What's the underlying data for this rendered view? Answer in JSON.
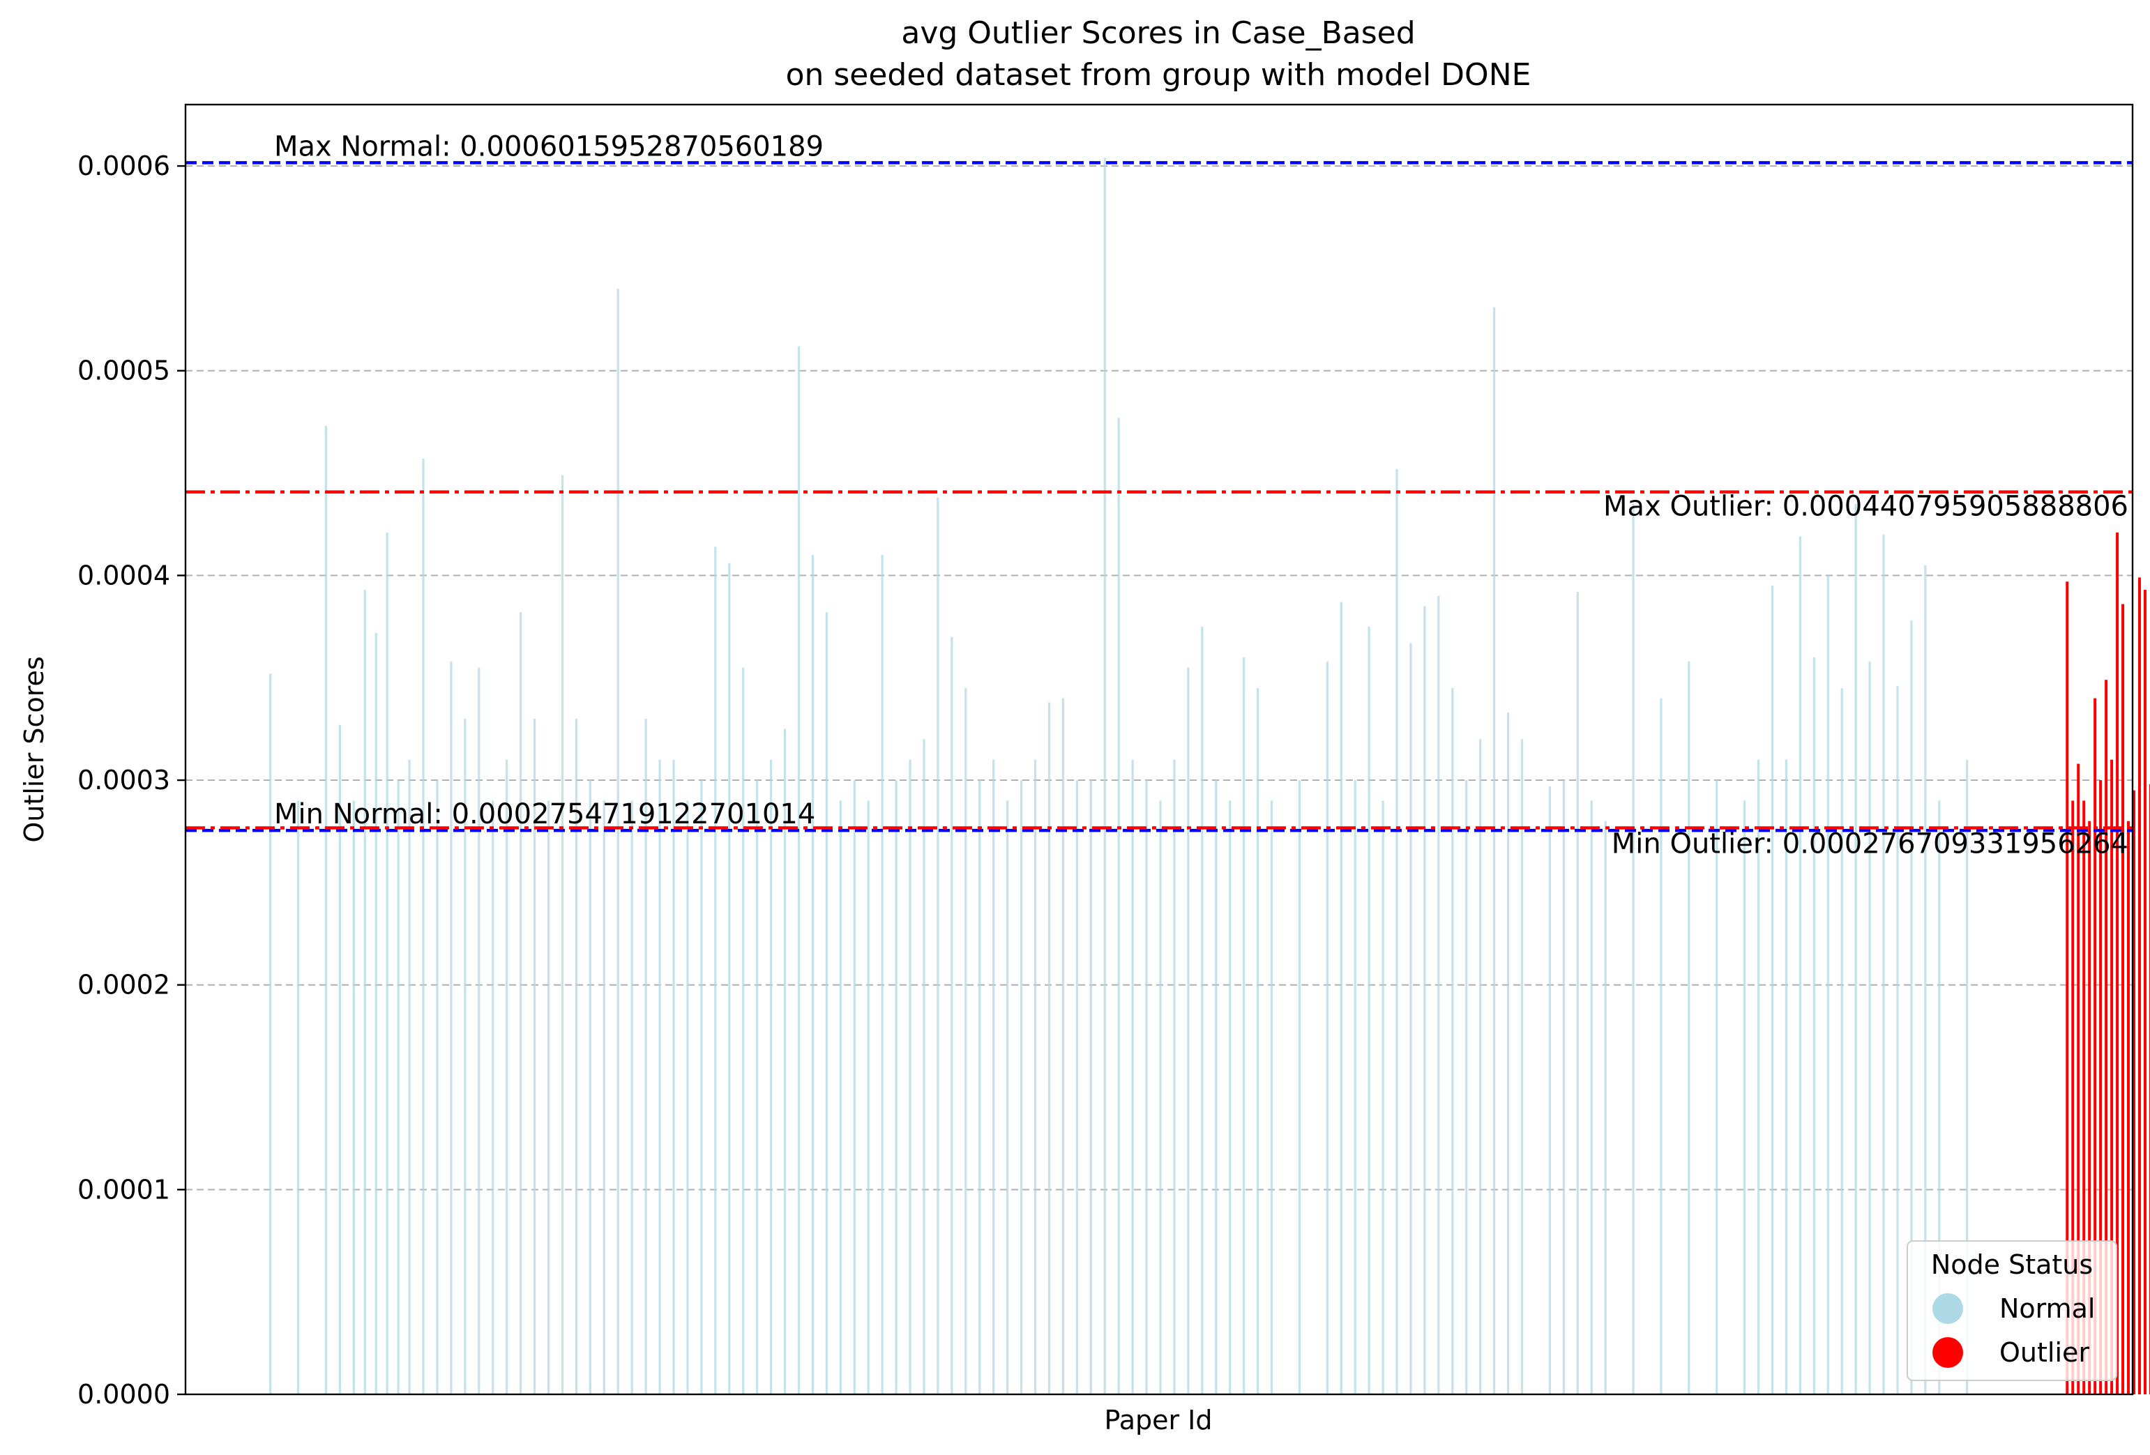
{
  "chart_data": {
    "type": "bar",
    "title_line1": "avg Outlier Scores in Case_Based",
    "title_line2": "on seeded dataset from group with model DONE",
    "xlabel": "Paper Id",
    "ylabel": "Outlier Scores",
    "ylim": [
      0,
      0.00063
    ],
    "yticks": [
      {
        "value": 0.0,
        "label": "0.0000"
      },
      {
        "value": 0.0001,
        "label": "0.0001"
      },
      {
        "value": 0.0002,
        "label": "0.0002"
      },
      {
        "value": 0.0003,
        "label": "0.0003"
      },
      {
        "value": 0.0004,
        "label": "0.0004"
      },
      {
        "value": 0.0005,
        "label": "0.0005"
      },
      {
        "value": 0.0006,
        "label": "0.0006"
      }
    ],
    "grid": "y-dashed",
    "n_categories": 700,
    "colors": {
      "normal": "#add8e6",
      "outlier": "#ff0000",
      "normal_line": "#0000ff",
      "outlier_line": "#ff0000"
    },
    "reference_lines": [
      {
        "name": "max_normal",
        "value": 0.0006015952870560189,
        "color": "#0000ff",
        "style": "dashed",
        "label": "Max Normal: 0.0006015952870560189"
      },
      {
        "name": "min_normal",
        "value": 0.0002754719122701,
        "color": "#0000ff",
        "style": "dashed",
        "label": "Min Normal: 0.0002754719122701014"
      },
      {
        "name": "max_outlier",
        "value": 0.000440795905888,
        "color": "#ff0000",
        "style": "dashdot",
        "label": "Max Outlier: 0.000440795905888806"
      },
      {
        "name": "min_outlier",
        "value": 0.000276709331956,
        "color": "#ff0000",
        "style": "dashdot",
        "label": "Min Outlier: 0.000276709331956264"
      }
    ],
    "series": [
      {
        "name": "Normal",
        "color": "#add8e6",
        "points": [
          [
            30,
            0.000352
          ],
          [
            40,
            0.00029
          ],
          [
            50,
            0.000473
          ],
          [
            55,
            0.000327
          ],
          [
            60,
            0.00029
          ],
          [
            64,
            0.000393
          ],
          [
            68,
            0.000372
          ],
          [
            72,
            0.000421
          ],
          [
            76,
            0.0003
          ],
          [
            80,
            0.00031
          ],
          [
            85,
            0.000457
          ],
          [
            90,
            0.0003
          ],
          [
            95,
            0.000358
          ],
          [
            100,
            0.00033
          ],
          [
            105,
            0.000355
          ],
          [
            110,
            0.00029
          ],
          [
            115,
            0.00031
          ],
          [
            120,
            0.000382
          ],
          [
            125,
            0.00033
          ],
          [
            130,
            0.00029
          ],
          [
            135,
            0.000449
          ],
          [
            140,
            0.00033
          ],
          [
            145,
            0.0003
          ],
          [
            150,
            0.00029
          ],
          [
            155,
            0.00054
          ],
          [
            160,
            0.00029
          ],
          [
            165,
            0.00033
          ],
          [
            170,
            0.00031
          ],
          [
            175,
            0.00031
          ],
          [
            180,
            0.00029
          ],
          [
            185,
            0.0003
          ],
          [
            190,
            0.000414
          ],
          [
            195,
            0.000406
          ],
          [
            200,
            0.000355
          ],
          [
            205,
            0.0003
          ],
          [
            210,
            0.00031
          ],
          [
            215,
            0.000325
          ],
          [
            220,
            0.000512
          ],
          [
            225,
            0.00041
          ],
          [
            230,
            0.000382
          ],
          [
            235,
            0.00029
          ],
          [
            240,
            0.0003
          ],
          [
            245,
            0.00029
          ],
          [
            250,
            0.00041
          ],
          [
            255,
            0.0003
          ],
          [
            260,
            0.00031
          ],
          [
            265,
            0.00032
          ],
          [
            270,
            0.000438
          ],
          [
            275,
            0.00037
          ],
          [
            280,
            0.000345
          ],
          [
            285,
            0.0003
          ],
          [
            290,
            0.00031
          ],
          [
            295,
            0.00029
          ],
          [
            300,
            0.0003
          ],
          [
            305,
            0.00031
          ],
          [
            310,
            0.000338
          ],
          [
            315,
            0.00034
          ],
          [
            320,
            0.0003
          ],
          [
            325,
            0.0003
          ],
          [
            330,
            0.000604
          ],
          [
            335,
            0.000477
          ],
          [
            340,
            0.00031
          ],
          [
            345,
            0.0003
          ],
          [
            350,
            0.00029
          ],
          [
            355,
            0.00031
          ],
          [
            360,
            0.000355
          ],
          [
            365,
            0.000375
          ],
          [
            370,
            0.0003
          ],
          [
            375,
            0.00029
          ],
          [
            380,
            0.00036
          ],
          [
            385,
            0.000345
          ],
          [
            390,
            0.00029
          ],
          [
            400,
            0.0003
          ],
          [
            410,
            0.000358
          ],
          [
            415,
            0.000387
          ],
          [
            420,
            0.0003
          ],
          [
            425,
            0.000375
          ],
          [
            430,
            0.00029
          ],
          [
            435,
            0.000452
          ],
          [
            440,
            0.000367
          ],
          [
            445,
            0.000385
          ],
          [
            450,
            0.00039
          ],
          [
            455,
            0.000345
          ],
          [
            460,
            0.0003
          ],
          [
            465,
            0.00032
          ],
          [
            470,
            0.000531
          ],
          [
            475,
            0.000333
          ],
          [
            480,
            0.00032
          ],
          [
            490,
            0.000297
          ],
          [
            495,
            0.0003
          ],
          [
            500,
            0.000392
          ],
          [
            505,
            0.00029
          ],
          [
            510,
            0.00028
          ],
          [
            520,
            0.000435
          ],
          [
            530,
            0.00034
          ],
          [
            540,
            0.000358
          ],
          [
            550,
            0.0003
          ],
          [
            560,
            0.00029
          ],
          [
            565,
            0.00031
          ],
          [
            570,
            0.000395
          ],
          [
            575,
            0.00031
          ],
          [
            580,
            0.000419
          ],
          [
            585,
            0.00036
          ],
          [
            590,
            0.0004
          ],
          [
            595,
            0.000345
          ],
          [
            600,
            0.000435
          ],
          [
            605,
            0.000358
          ],
          [
            610,
            0.00042
          ],
          [
            615,
            0.000346
          ],
          [
            620,
            0.000378
          ],
          [
            625,
            0.000405
          ],
          [
            630,
            0.00029
          ],
          [
            640,
            0.00031
          ]
        ]
      },
      {
        "name": "Outlier",
        "color": "#ff0000",
        "points": [
          [
            676,
            0.000397
          ],
          [
            678,
            0.00029
          ],
          [
            680,
            0.000308
          ],
          [
            682,
            0.00029
          ],
          [
            684,
            0.00028
          ],
          [
            686,
            0.00034
          ],
          [
            688,
            0.0003
          ],
          [
            690,
            0.000349
          ],
          [
            692,
            0.00031
          ],
          [
            694,
            0.000421
          ],
          [
            696,
            0.000386
          ],
          [
            698,
            0.00028
          ],
          [
            700,
            0.000295
          ],
          [
            702,
            0.000399
          ],
          [
            704,
            0.000393
          ],
          [
            706,
            0.000298
          ],
          [
            708,
            0.00029
          ],
          [
            710,
            0.000438
          ],
          [
            712,
            0.000368
          ],
          [
            714,
            0.000347
          ],
          [
            716,
            0.00029
          ]
        ]
      }
    ],
    "legend": {
      "title": "Node Status",
      "position": "lower-right",
      "items": [
        {
          "label": "Normal",
          "color": "#add8e6"
        },
        {
          "label": "Outlier",
          "color": "#ff0000"
        }
      ]
    }
  }
}
